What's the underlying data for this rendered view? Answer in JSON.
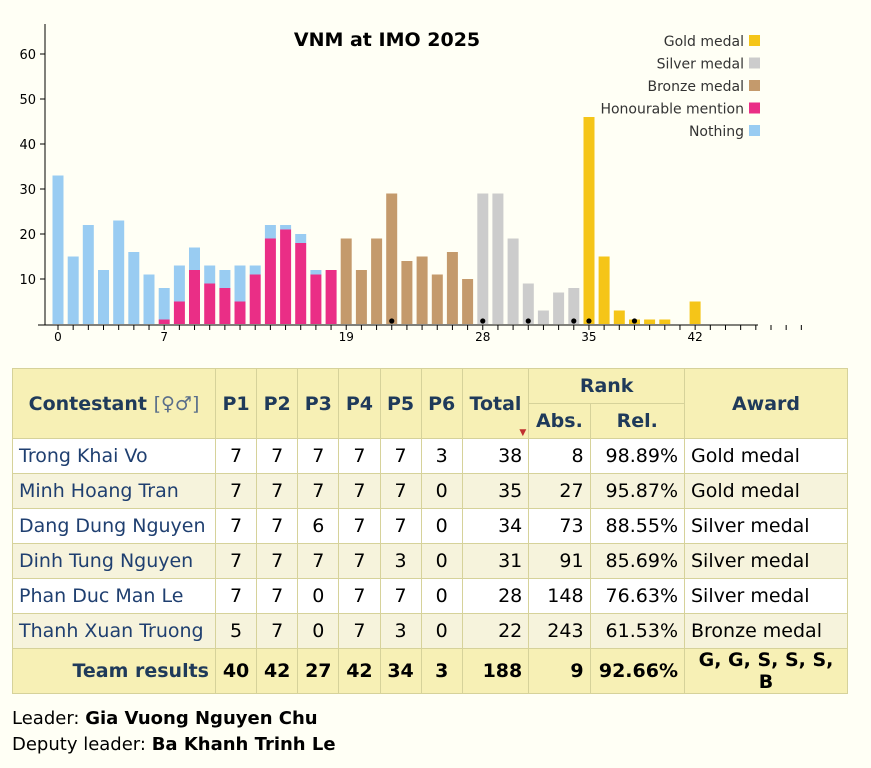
{
  "chart_data": {
    "type": "bar",
    "title": "VNM at IMO 2025",
    "y_ticks": [
      "10",
      "20",
      "30",
      "40",
      "50",
      "60"
    ],
    "x_ticks": [
      "0",
      "7",
      "19",
      "28",
      "35",
      "42"
    ],
    "ylim": [
      0,
      66
    ],
    "xlim": [
      0,
      49
    ],
    "legend_position": "top-right",
    "legend": [
      {
        "label": "Gold medal",
        "color": "#f5c518"
      },
      {
        "label": "Silver medal",
        "color": "#cccccc"
      },
      {
        "label": "Bronze medal",
        "color": "#c49a6c"
      },
      {
        "label": "Honourable mention",
        "color": "#ea2e86"
      },
      {
        "label": "Nothing",
        "color": "#99ccf2"
      }
    ],
    "bars": [
      {
        "score": 0,
        "seg": [
          [
            0,
            33,
            "nothing"
          ]
        ]
      },
      {
        "score": 1,
        "seg": [
          [
            0,
            15,
            "nothing"
          ]
        ]
      },
      {
        "score": 2,
        "seg": [
          [
            0,
            22,
            "nothing"
          ]
        ]
      },
      {
        "score": 3,
        "seg": [
          [
            0,
            12,
            "nothing"
          ]
        ]
      },
      {
        "score": 4,
        "seg": [
          [
            0,
            23,
            "nothing"
          ]
        ]
      },
      {
        "score": 5,
        "seg": [
          [
            0,
            16,
            "nothing"
          ]
        ]
      },
      {
        "score": 6,
        "seg": [
          [
            0,
            11,
            "nothing"
          ]
        ]
      },
      {
        "score": 7,
        "seg": [
          [
            0,
            1,
            "hm"
          ],
          [
            1,
            8,
            "nothing"
          ]
        ]
      },
      {
        "score": 8,
        "seg": [
          [
            0,
            5,
            "hm"
          ],
          [
            5,
            13,
            "nothing"
          ]
        ]
      },
      {
        "score": 9,
        "seg": [
          [
            0,
            12,
            "hm"
          ],
          [
            12,
            17,
            "nothing"
          ]
        ]
      },
      {
        "score": 10,
        "seg": [
          [
            0,
            9,
            "hm"
          ],
          [
            9,
            13,
            "nothing"
          ]
        ]
      },
      {
        "score": 11,
        "seg": [
          [
            0,
            8,
            "hm"
          ],
          [
            8,
            12,
            "nothing"
          ]
        ]
      },
      {
        "score": 12,
        "seg": [
          [
            0,
            5,
            "hm"
          ],
          [
            5,
            13,
            "nothing"
          ]
        ]
      },
      {
        "score": 13,
        "seg": [
          [
            0,
            11,
            "hm"
          ],
          [
            11,
            13,
            "nothing"
          ]
        ]
      },
      {
        "score": 14,
        "seg": [
          [
            0,
            19,
            "hm"
          ],
          [
            19,
            22,
            "nothing"
          ]
        ]
      },
      {
        "score": 15,
        "seg": [
          [
            0,
            21,
            "hm"
          ],
          [
            21,
            22,
            "nothing"
          ]
        ]
      },
      {
        "score": 16,
        "seg": [
          [
            0,
            18,
            "hm"
          ],
          [
            18,
            20,
            "nothing"
          ]
        ]
      },
      {
        "score": 17,
        "seg": [
          [
            0,
            11,
            "hm"
          ],
          [
            11,
            12,
            "nothing"
          ]
        ]
      },
      {
        "score": 18,
        "seg": [
          [
            0,
            12,
            "hm"
          ]
        ]
      },
      {
        "score": 19,
        "seg": [
          [
            0,
            19,
            "bronze"
          ]
        ]
      },
      {
        "score": 20,
        "seg": [
          [
            0,
            12,
            "bronze"
          ]
        ]
      },
      {
        "score": 21,
        "seg": [
          [
            0,
            19,
            "bronze"
          ]
        ]
      },
      {
        "score": 22,
        "seg": [
          [
            0,
            29,
            "bronze"
          ]
        ]
      },
      {
        "score": 23,
        "seg": [
          [
            0,
            14,
            "bronze"
          ]
        ]
      },
      {
        "score": 24,
        "seg": [
          [
            0,
            15,
            "bronze"
          ]
        ]
      },
      {
        "score": 25,
        "seg": [
          [
            0,
            11,
            "bronze"
          ]
        ]
      },
      {
        "score": 26,
        "seg": [
          [
            0,
            16,
            "bronze"
          ]
        ]
      },
      {
        "score": 27,
        "seg": [
          [
            0,
            10,
            "bronze"
          ]
        ]
      },
      {
        "score": 28,
        "seg": [
          [
            0,
            29,
            "silver"
          ]
        ]
      },
      {
        "score": 29,
        "seg": [
          [
            0,
            29,
            "silver"
          ]
        ]
      },
      {
        "score": 30,
        "seg": [
          [
            0,
            19,
            "silver"
          ]
        ]
      },
      {
        "score": 31,
        "seg": [
          [
            0,
            9,
            "silver"
          ]
        ]
      },
      {
        "score": 32,
        "seg": [
          [
            0,
            3,
            "silver"
          ]
        ]
      },
      {
        "score": 33,
        "seg": [
          [
            0,
            7,
            "silver"
          ]
        ]
      },
      {
        "score": 34,
        "seg": [
          [
            0,
            8,
            "silver"
          ]
        ]
      },
      {
        "score": 35,
        "seg": [
          [
            0,
            46,
            "gold"
          ]
        ]
      },
      {
        "score": 36,
        "seg": [
          [
            0,
            15,
            "gold"
          ]
        ]
      },
      {
        "score": 37,
        "seg": [
          [
            0,
            3,
            "gold"
          ]
        ]
      },
      {
        "score": 38,
        "seg": [
          [
            0,
            1,
            "gold"
          ]
        ]
      },
      {
        "score": 39,
        "seg": [
          [
            0,
            1,
            "gold"
          ]
        ]
      },
      {
        "score": 40,
        "seg": [
          [
            0,
            1,
            "gold"
          ]
        ]
      },
      {
        "score": 42,
        "seg": [
          [
            0,
            5,
            "gold"
          ]
        ]
      }
    ],
    "team_markers": [
      22,
      28,
      31,
      34,
      35,
      38
    ]
  },
  "table": {
    "headers": {
      "contestant": "Contestant",
      "gender": "[♀♂]",
      "p1": "P1",
      "p2": "P2",
      "p3": "P3",
      "p4": "P4",
      "p5": "P5",
      "p6": "P6",
      "total": "Total",
      "rank": "Rank",
      "abs": "Abs.",
      "rel": "Rel.",
      "award": "Award",
      "sort_marker": "▼"
    },
    "rows": [
      {
        "name": "Trong Khai Vo",
        "p1": "7",
        "p2": "7",
        "p3": "7",
        "p4": "7",
        "p5": "7",
        "p6": "3",
        "total": "38",
        "abs": "8",
        "rel": "98.89%",
        "award": "Gold medal"
      },
      {
        "name": "Minh Hoang Tran",
        "p1": "7",
        "p2": "7",
        "p3": "7",
        "p4": "7",
        "p5": "7",
        "p6": "0",
        "total": "35",
        "abs": "27",
        "rel": "95.87%",
        "award": "Gold medal"
      },
      {
        "name": "Dang Dung Nguyen",
        "p1": "7",
        "p2": "7",
        "p3": "6",
        "p4": "7",
        "p5": "7",
        "p6": "0",
        "total": "34",
        "abs": "73",
        "rel": "88.55%",
        "award": "Silver medal"
      },
      {
        "name": "Dinh Tung Nguyen",
        "p1": "7",
        "p2": "7",
        "p3": "7",
        "p4": "7",
        "p5": "3",
        "p6": "0",
        "total": "31",
        "abs": "91",
        "rel": "85.69%",
        "award": "Silver medal"
      },
      {
        "name": "Phan Duc Man Le",
        "p1": "7",
        "p2": "7",
        "p3": "0",
        "p4": "7",
        "p5": "7",
        "p6": "0",
        "total": "28",
        "abs": "148",
        "rel": "76.63%",
        "award": "Silver medal"
      },
      {
        "name": "Thanh Xuan Truong",
        "p1": "5",
        "p2": "7",
        "p3": "0",
        "p4": "7",
        "p5": "3",
        "p6": "0",
        "total": "22",
        "abs": "243",
        "rel": "61.53%",
        "award": "Bronze medal"
      }
    ],
    "team": {
      "label": "Team results",
      "p1": "40",
      "p2": "42",
      "p3": "27",
      "p4": "42",
      "p5": "34",
      "p6": "3",
      "total": "188",
      "abs": "9",
      "rel": "92.66%",
      "award": "G, G, S, S, S, B"
    }
  },
  "footer": {
    "leader_label": "Leader:",
    "leader_name": "Gia Vuong Nguyen Chu",
    "deputy_label": "Deputy leader:",
    "deputy_name": "Ba Khanh Trinh Le"
  }
}
